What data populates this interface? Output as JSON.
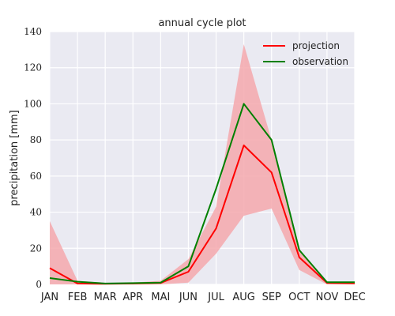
{
  "chart_data": {
    "type": "line",
    "title": "annual cycle plot",
    "xlabel": "",
    "ylabel": "precipitation [mm]",
    "categories": [
      "JAN",
      "FEB",
      "MAR",
      "APR",
      "MAI",
      "JUN",
      "JUL",
      "AUG",
      "SEP",
      "OCT",
      "NOV",
      "DEC"
    ],
    "ylim": [
      0,
      140
    ],
    "yticks": [
      0,
      20,
      40,
      60,
      80,
      100,
      120,
      140
    ],
    "grid": true,
    "legend_position": "top-right",
    "series": [
      {
        "name": "projection",
        "color": "#ff0000",
        "values": [
          9,
          0.5,
          0.3,
          0.5,
          0.8,
          7,
          31,
          77,
          62,
          15,
          0.8,
          0.6
        ]
      },
      {
        "name": "observation",
        "color": "#008000",
        "values": [
          3.5,
          1.5,
          0.5,
          0.7,
          1,
          10,
          53,
          100,
          80,
          19,
          1.2,
          1.2
        ]
      }
    ],
    "band": {
      "series": "projection",
      "color": "#f4a8ad",
      "lower": [
        0,
        0,
        0,
        0,
        0,
        1,
        17,
        38,
        42,
        8,
        0,
        0
      ],
      "upper": [
        35,
        2,
        0.8,
        1,
        2,
        14,
        43,
        133,
        80,
        19,
        1.5,
        1.5
      ]
    }
  },
  "colors": {
    "plot_background": "#eaeaf2",
    "grid": "#ffffff"
  }
}
